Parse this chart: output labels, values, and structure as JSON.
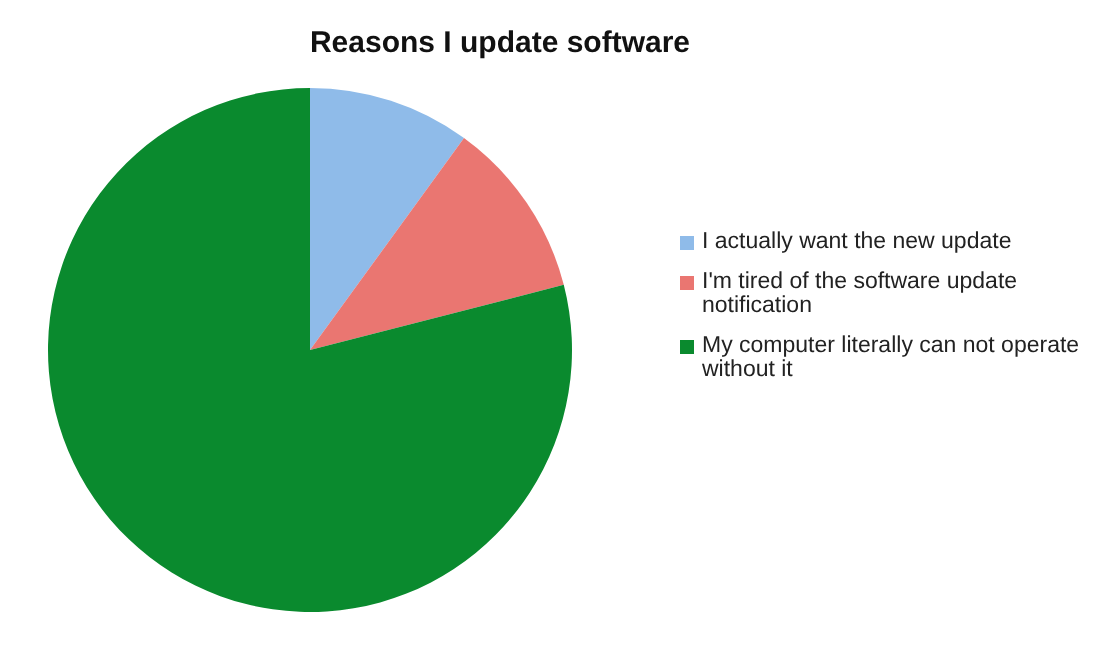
{
  "chart_data": {
    "type": "pie",
    "title": "Reasons I update software",
    "categories": [
      "I actually want the new update",
      "I'm tired of the software update notification",
      "My computer literally can not operate without it"
    ],
    "values": [
      10,
      11,
      79
    ],
    "colors": [
      "#8fbbe9",
      "#ea7671",
      "#0a8a2e"
    ],
    "legend": "right"
  }
}
